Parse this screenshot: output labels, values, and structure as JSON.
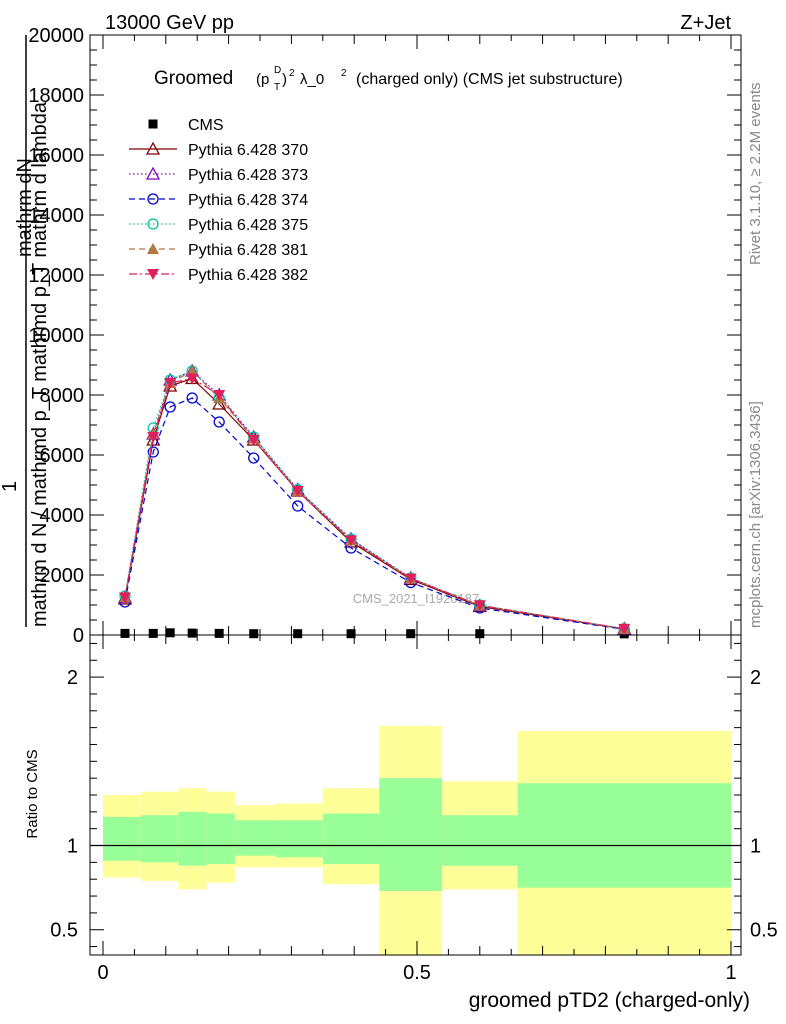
{
  "header": {
    "energy_label": "13000 GeV pp",
    "process_label": "Z+Jet"
  },
  "side_labels": {
    "rivet": "Rivet 3.1.10, ≥ 2.2M events",
    "mcplots": "mcplots.cern.ch [arXiv:1306.3436]"
  },
  "watermark": "CMS_2021_I1920187",
  "chart_data": [
    {
      "type": "line",
      "title": "Groomed (p_T^D)^2 λ_0^2  (charged only) (CMS jet substructure)",
      "title_parts": {
        "prefix": "Groomed",
        "p": "(p",
        "sub": "T",
        "sup": "D",
        "close": ")",
        "sq": "2",
        "lam": "λ_0",
        "lam_sup": "2",
        "suffix": "(charged only) (CMS jet substructure)"
      },
      "ylabel_top": "mathrm dN",
      "ylabel_num": "1",
      "ylabel_den": "mathrm d N / mathrmd p_T mathrmd p_T mathrm d lambda",
      "ylim": [
        0,
        20000
      ],
      "xlim": [
        0,
        1
      ],
      "yticks": [
        0,
        2000,
        4000,
        6000,
        8000,
        10000,
        12000,
        14000,
        16000,
        18000,
        20000
      ],
      "ytick_labels": [
        "0",
        "2000",
        "4000",
        "6000",
        "8000",
        "10000",
        "12000",
        "14000",
        "16000",
        "18000",
        "20000"
      ],
      "x": [
        0.035,
        0.08,
        0.107,
        0.142,
        0.185,
        0.24,
        0.31,
        0.395,
        0.49,
        0.6,
        0.83
      ],
      "series": [
        {
          "name": "CMS",
          "color": "#000000",
          "marker": "square",
          "dash": "",
          "values": [
            20,
            20,
            40,
            30,
            20,
            10,
            10,
            10,
            10,
            10,
            5
          ]
        },
        {
          "name": "Pythia 6.428 370",
          "color": "#800000",
          "marker": "triangle-open",
          "dash": "",
          "values": [
            1200,
            6500,
            8300,
            8550,
            7700,
            6500,
            4800,
            3100,
            1850,
            950,
            200
          ]
        },
        {
          "name": "Pythia 6.428 373",
          "color": "#8000c0",
          "marker": "triangle-open",
          "dash": "1.5,2.5",
          "values": [
            1250,
            6700,
            8500,
            8800,
            8000,
            6600,
            4850,
            3200,
            1900,
            980,
            210
          ]
        },
        {
          "name": "Pythia 6.428 374",
          "color": "#0000d0",
          "marker": "circle-open",
          "dash": "6,4",
          "values": [
            1100,
            6100,
            7600,
            7900,
            7100,
            5900,
            4300,
            2900,
            1750,
            900,
            190
          ]
        },
        {
          "name": "Pythia 6.428 375",
          "color": "#00c8a0",
          "marker": "circle-open",
          "dash": "1.5,2.5",
          "values": [
            1300,
            6900,
            8500,
            8800,
            7900,
            6600,
            4850,
            3200,
            1900,
            1000,
            210
          ]
        },
        {
          "name": "Pythia 6.428 381",
          "color": "#b07840",
          "marker": "triangle-filled",
          "dash": "6,4",
          "values": [
            1250,
            6700,
            8400,
            8800,
            7900,
            6550,
            4800,
            3150,
            1880,
            980,
            205
          ]
        },
        {
          "name": "Pythia 6.428 382",
          "color": "#e0205a",
          "marker": "triangle-down-filled",
          "dash": "8,3,2,3",
          "values": [
            1250,
            6600,
            8400,
            8550,
            8000,
            6500,
            4800,
            3150,
            1880,
            990,
            205
          ]
        }
      ]
    },
    {
      "type": "area",
      "ylabel": "Ratio to CMS",
      "xlabel": "groomed pTD2 (charged-only)",
      "xlim": [
        0,
        1
      ],
      "ylim": [
        0.35,
        2.25
      ],
      "xticks": [
        0,
        0.5,
        1
      ],
      "xtick_labels": [
        "0",
        "0.5",
        "1"
      ],
      "yticks": [
        0.5,
        1,
        2
      ],
      "ytick_labels": [
        "0.5",
        "1",
        "2"
      ],
      "reference": 1,
      "bands": {
        "edges": [
          0,
          0.06,
          0.12,
          0.165,
          0.21,
          0.275,
          0.35,
          0.44,
          0.54,
          0.66,
          1.0
        ],
        "stat_hi": [
          1.17,
          1.18,
          1.2,
          1.19,
          1.15,
          1.15,
          1.19,
          1.4,
          1.18,
          1.37
        ],
        "stat_lo": [
          0.91,
          0.9,
          0.88,
          0.89,
          0.94,
          0.93,
          0.89,
          0.73,
          0.88,
          0.75
        ],
        "total_hi": [
          1.3,
          1.32,
          1.34,
          1.32,
          1.24,
          1.25,
          1.34,
          1.71,
          1.38,
          1.68
        ],
        "total_lo": [
          0.81,
          0.79,
          0.74,
          0.78,
          0.87,
          0.87,
          0.77,
          0.35,
          0.74,
          0.35
        ]
      }
    }
  ],
  "colors": {
    "stat_band": "#99ff99",
    "total_band": "#ffff99"
  }
}
